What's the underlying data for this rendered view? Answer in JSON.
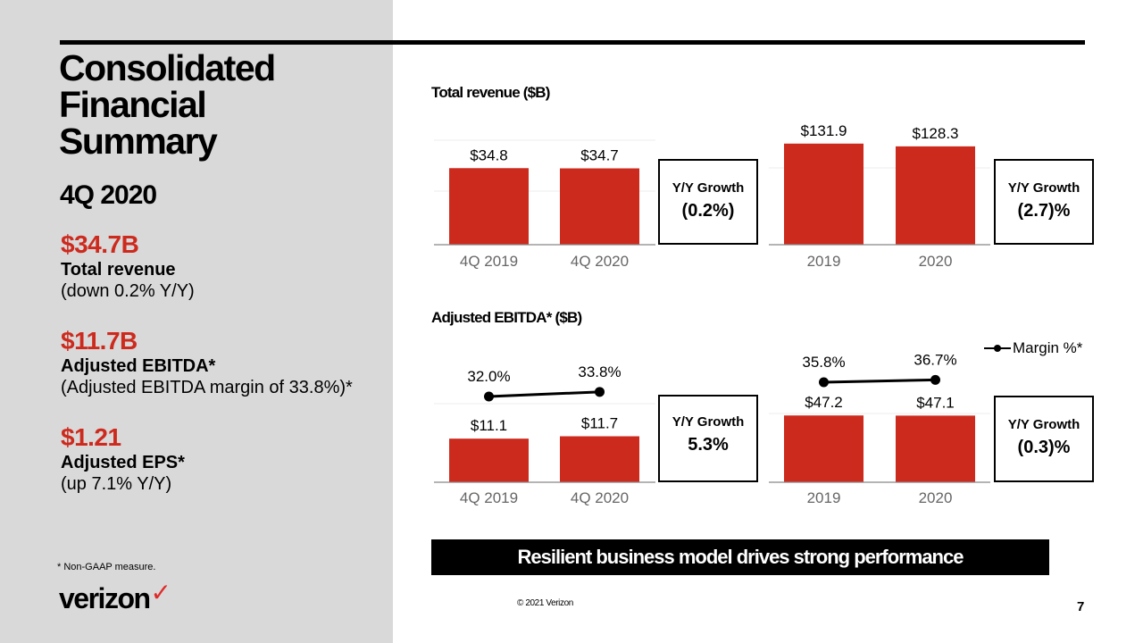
{
  "left": {
    "title_lines": [
      "Consolidated",
      "Financial",
      "Summary"
    ],
    "period": "4Q 2020",
    "metrics": [
      {
        "value": "$34.7B",
        "label": "Total revenue",
        "note": "(down 0.2% Y/Y)"
      },
      {
        "value": "$11.7B",
        "label": "Adjusted EBITDA*",
        "note": "(Adjusted EBITDA margin of 33.8%)*"
      },
      {
        "value": "$1.21",
        "label": "Adjusted EPS*",
        "note": "(up 7.1% Y/Y)"
      }
    ],
    "footnote": "* Non-GAAP measure.",
    "logo": {
      "text": "verizon",
      "check": "✓"
    }
  },
  "colors": {
    "bar": "#cd2a1e",
    "accent_text": "#cd2a1e",
    "line": "#000000",
    "panel": "#d9d9d9"
  },
  "chart_data": [
    {
      "type": "bar",
      "title": "Total revenue ($B)",
      "categories": [
        "4Q 2019",
        "4Q 2020"
      ],
      "values": [
        34.8,
        34.7
      ],
      "data_labels": [
        "$34.8",
        "$34.7"
      ],
      "growth_label": "Y/Y Growth",
      "growth_value": "(0.2%)"
    },
    {
      "type": "bar",
      "title": "Total revenue ($B)",
      "categories": [
        "2019",
        "2020"
      ],
      "values": [
        131.9,
        128.3
      ],
      "data_labels": [
        "$131.9",
        "$128.3"
      ],
      "growth_label": "Y/Y Growth",
      "growth_value": "(2.7)%"
    },
    {
      "type": "bar",
      "title": "Adjusted EBITDA* ($B)",
      "categories": [
        "4Q 2019",
        "4Q 2020"
      ],
      "values": [
        11.1,
        11.7
      ],
      "data_labels": [
        "$11.1",
        "$11.7"
      ],
      "line_series": {
        "name": "Margin %*",
        "values": [
          32.0,
          33.8
        ],
        "labels": [
          "32.0%",
          "33.8%"
        ]
      },
      "growth_label": "Y/Y Growth",
      "growth_value": "5.3%"
    },
    {
      "type": "bar",
      "title": "Adjusted EBITDA* ($B)",
      "categories": [
        "2019",
        "2020"
      ],
      "values": [
        47.2,
        47.1
      ],
      "data_labels": [
        "$47.2",
        "$47.1"
      ],
      "line_series": {
        "name": "Margin %*",
        "values": [
          35.8,
          36.7
        ],
        "labels": [
          "35.8%",
          "36.7%"
        ]
      },
      "growth_label": "Y/Y Growth",
      "growth_value": "(0.3)%"
    }
  ],
  "legend": {
    "label": "Margin %*"
  },
  "banner": "Resilient business model drives strong performance",
  "footer": {
    "copyright": "© 2021 Verizon",
    "page": "7"
  }
}
